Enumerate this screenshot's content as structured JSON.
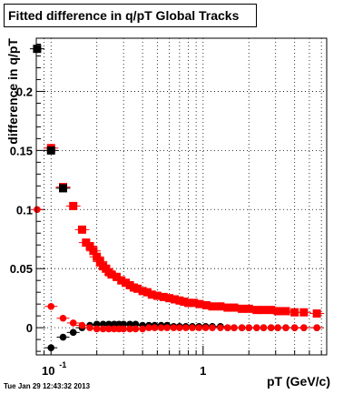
{
  "title": "Fitted difference in q/pT  Global Tracks",
  "timestamp": "Tue Jan 29 12:43:32 2013",
  "colors": {
    "series_red": "#ff0000",
    "series_black": "#000000",
    "grid": "#000000"
  },
  "chart_data": {
    "type": "scatter",
    "title": "Fitted difference in q/pT  Global Tracks",
    "xlabel": "pT (GeV/c)",
    "ylabel": "difference in q/pT",
    "xscale": "log",
    "xlim": [
      0.08,
      6.5
    ],
    "ylim": [
      -0.023,
      0.245
    ],
    "grid": true,
    "x_ticks": [
      {
        "value": 0.1,
        "base": "10",
        "exp": "-1"
      },
      {
        "value": 1,
        "base": "1",
        "exp": ""
      }
    ],
    "y_ticks": [
      {
        "value": 0,
        "label": "0"
      },
      {
        "value": 0.05,
        "label": "0.05"
      },
      {
        "value": 0.1,
        "label": "0.1"
      },
      {
        "value": 0.15,
        "label": "0.15"
      },
      {
        "value": 0.2,
        "label": "0.2"
      }
    ],
    "series": [
      {
        "marker": "square",
        "color": "#ff0000",
        "points": [
          [
            0.1,
            0.152
          ],
          [
            0.12,
            0.119
          ],
          [
            0.14,
            0.103
          ],
          [
            0.16,
            0.083
          ],
          [
            0.17,
            0.072
          ],
          [
            0.18,
            0.069
          ],
          [
            0.19,
            0.065
          ],
          [
            0.2,
            0.06
          ],
          [
            0.21,
            0.056
          ],
          [
            0.22,
            0.052
          ],
          [
            0.23,
            0.05
          ],
          [
            0.24,
            0.047
          ],
          [
            0.25,
            0.045
          ],
          [
            0.27,
            0.043
          ],
          [
            0.29,
            0.04
          ],
          [
            0.31,
            0.038
          ],
          [
            0.33,
            0.036
          ],
          [
            0.35,
            0.034
          ],
          [
            0.37,
            0.033
          ],
          [
            0.4,
            0.031
          ],
          [
            0.43,
            0.03
          ],
          [
            0.46,
            0.028
          ],
          [
            0.5,
            0.027
          ],
          [
            0.55,
            0.026
          ],
          [
            0.6,
            0.025
          ],
          [
            0.65,
            0.024
          ],
          [
            0.7,
            0.023
          ],
          [
            0.75,
            0.022
          ],
          [
            0.8,
            0.021
          ],
          [
            0.87,
            0.021
          ],
          [
            0.95,
            0.02
          ],
          [
            1.05,
            0.019
          ],
          [
            1.15,
            0.018
          ],
          [
            1.3,
            0.018
          ],
          [
            1.45,
            0.017
          ],
          [
            1.6,
            0.017
          ],
          [
            1.8,
            0.016
          ],
          [
            2.0,
            0.016
          ],
          [
            2.25,
            0.015
          ],
          [
            2.5,
            0.015
          ],
          [
            2.8,
            0.015
          ],
          [
            3.1,
            0.014
          ],
          [
            3.5,
            0.014
          ],
          [
            4.0,
            0.013
          ],
          [
            4.6,
            0.013
          ],
          [
            5.6,
            0.012
          ]
        ]
      },
      {
        "marker": "square",
        "color": "#000000",
        "points": [
          [
            0.081,
            0.236
          ],
          [
            0.1,
            0.15
          ],
          [
            0.12,
            0.118
          ]
        ]
      },
      {
        "marker": "circle",
        "color": "#000000",
        "points": [
          [
            0.1,
            -0.017
          ],
          [
            0.12,
            -0.008
          ],
          [
            0.14,
            -0.004
          ],
          [
            0.16,
            0.0
          ],
          [
            0.18,
            0.002
          ],
          [
            0.2,
            0.003
          ],
          [
            0.22,
            0.003
          ],
          [
            0.24,
            0.003
          ],
          [
            0.26,
            0.003
          ],
          [
            0.28,
            0.003
          ],
          [
            0.3,
            0.003
          ],
          [
            0.33,
            0.003
          ],
          [
            0.36,
            0.003
          ],
          [
            0.4,
            0.002
          ],
          [
            0.44,
            0.002
          ],
          [
            0.48,
            0.002
          ],
          [
            0.53,
            0.002
          ],
          [
            0.58,
            0.002
          ],
          [
            0.64,
            0.001
          ],
          [
            0.7,
            0.001
          ],
          [
            0.77,
            0.001
          ],
          [
            0.85,
            0.001
          ],
          [
            0.94,
            0.001
          ],
          [
            1.04,
            0.001
          ],
          [
            1.15,
            0.001
          ],
          [
            1.3,
            0.001
          ],
          [
            1.45,
            0.0
          ],
          [
            1.6,
            0.0
          ],
          [
            1.8,
            0.0
          ],
          [
            2.0,
            0.0
          ],
          [
            2.25,
            0.0
          ],
          [
            2.5,
            0.0
          ],
          [
            2.8,
            0.0
          ],
          [
            3.1,
            0.0
          ],
          [
            3.5,
            0.0
          ],
          [
            4.0,
            0.0
          ],
          [
            4.6,
            0.0
          ],
          [
            5.6,
            0.0
          ]
        ]
      },
      {
        "marker": "circle",
        "color": "#ff0000",
        "points": [
          [
            0.081,
            0.1
          ],
          [
            0.1,
            0.018
          ],
          [
            0.12,
            0.008
          ],
          [
            0.14,
            0.004
          ],
          [
            0.16,
            0.002
          ],
          [
            0.18,
            0.0
          ],
          [
            0.2,
            -0.001
          ],
          [
            0.22,
            -0.001
          ],
          [
            0.24,
            -0.001
          ],
          [
            0.26,
            -0.001
          ],
          [
            0.28,
            -0.001
          ],
          [
            0.3,
            -0.001
          ],
          [
            0.33,
            -0.001
          ],
          [
            0.36,
            -0.001
          ],
          [
            0.4,
            -0.001
          ],
          [
            0.44,
            0.0
          ],
          [
            0.48,
            0.0
          ],
          [
            0.53,
            0.0
          ],
          [
            0.58,
            0.0
          ],
          [
            0.64,
            0.0
          ],
          [
            0.7,
            0.0
          ],
          [
            0.77,
            0.0
          ],
          [
            0.85,
            0.0
          ],
          [
            0.94,
            0.0
          ],
          [
            1.04,
            0.0
          ],
          [
            1.15,
            0.0
          ],
          [
            1.3,
            0.0
          ],
          [
            1.45,
            0.0
          ],
          [
            1.6,
            0.0
          ],
          [
            1.8,
            0.0
          ],
          [
            2.0,
            0.0
          ],
          [
            2.25,
            0.0
          ],
          [
            2.5,
            0.0
          ],
          [
            2.8,
            0.0
          ],
          [
            3.1,
            0.0
          ],
          [
            3.5,
            0.0
          ],
          [
            4.0,
            0.0
          ],
          [
            4.6,
            0.0
          ],
          [
            5.6,
            0.0
          ]
        ]
      }
    ]
  }
}
